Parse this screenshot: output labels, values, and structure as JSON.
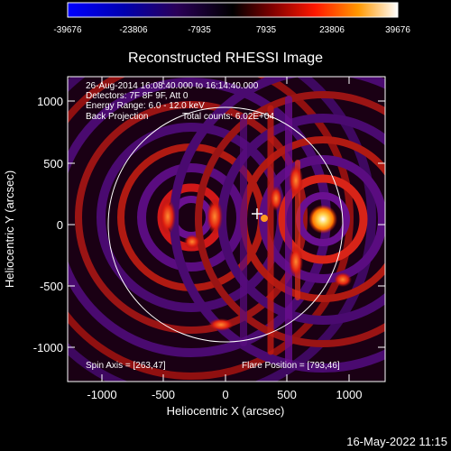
{
  "colorbar": {
    "ticks": [
      "-39676",
      "-23806",
      "-7935",
      "7935",
      "23806",
      "39676"
    ],
    "colors": [
      "#0000ff",
      "#0000a0",
      "#3a0050",
      "#000000",
      "#700000",
      "#ff2000",
      "#ff9000",
      "#ffffff"
    ]
  },
  "title": "Reconstructed RHESSI Image",
  "info": {
    "time_range": "26-Aug-2014 16:08:40.000 to 16:14:40.000",
    "detectors": "Detectors: 7F 8F 9F, Att 0",
    "energy": "Energy Range: 6.0 - 12.0 keV",
    "method": "Back Projection",
    "counts": "Total counts: 6.02E+04"
  },
  "annotations": {
    "spin_axis": "Spin Axis = [263,47]",
    "flare_position": "Flare Position = [793,46]"
  },
  "axes": {
    "xlabel": "Heliocentric X (arcsec)",
    "ylabel": "Heliocentric Y (arcsec)",
    "xticks": [
      "-1000",
      "-500",
      "0",
      "500",
      "1000"
    ],
    "yticks": [
      "1000",
      "500",
      "0",
      "-500",
      "-1000"
    ]
  },
  "footer": {
    "timestamp": "16-May-2022 11:15"
  },
  "colors": {
    "background": "#000000",
    "text": "#ffffff",
    "limb": "#ffffff"
  }
}
